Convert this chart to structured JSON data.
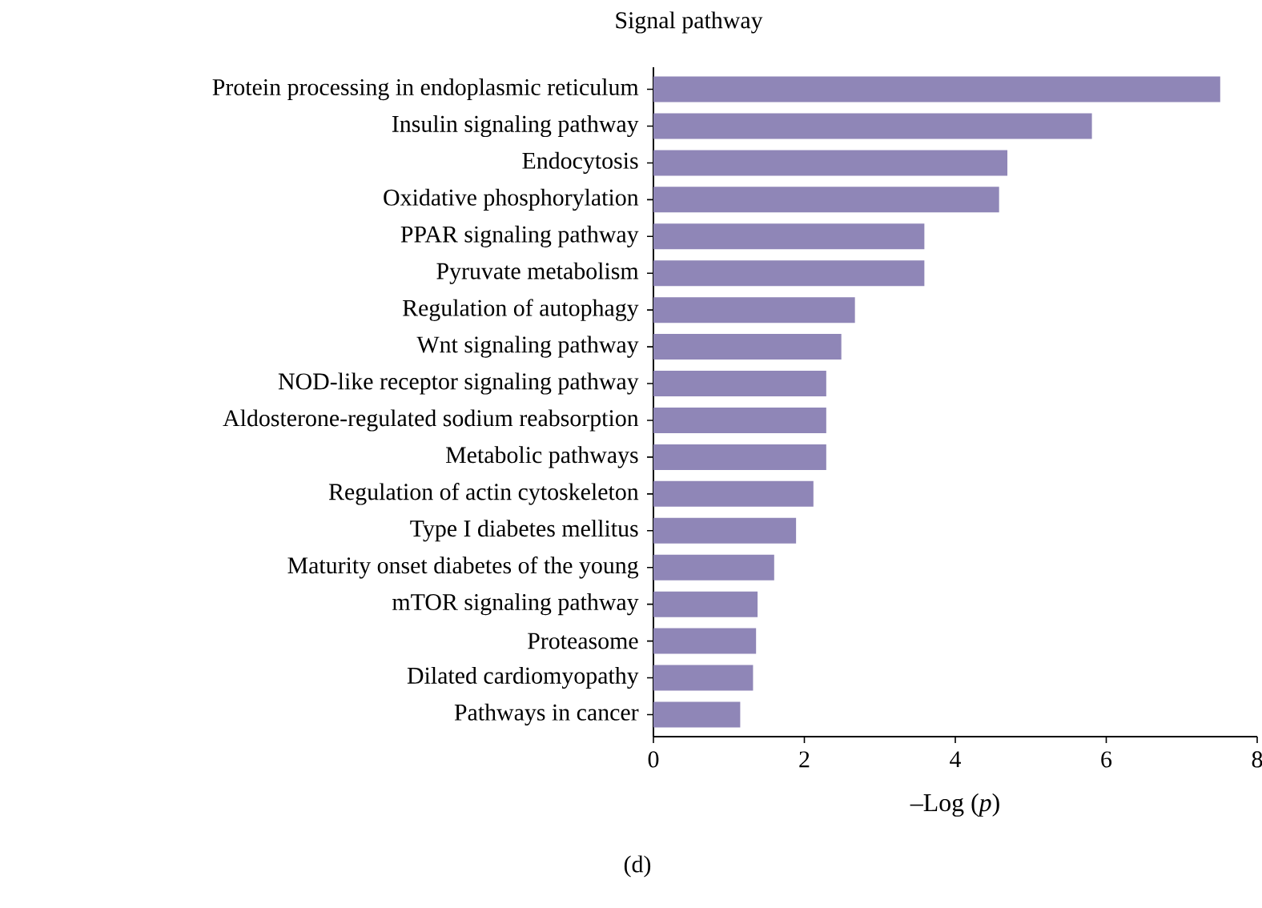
{
  "chart_data": {
    "type": "bar",
    "orientation": "horizontal",
    "title": "Signal pathway",
    "xlabel": "–Log (*p*)",
    "annotations": [
      "(d)"
    ],
    "categories": [
      "Protein processing in endoplasmic reticulum",
      "Insulin signaling pathway",
      "Endocytosis",
      "Oxidative phosphorylation",
      "PPAR signaling pathway",
      "Pyruvate metabolism",
      "Regulation of autophagy",
      "Wnt signaling pathway",
      "NOD-like receptor signaling pathway",
      "Aldosterone-regulated sodium reabsorption",
      "Metabolic pathways",
      "Regulation of actin cytoskeleton",
      "Type I diabetes mellitus",
      "Maturity onset diabetes of the young",
      "mTOR signaling pathway",
      "Proteasome",
      "Dilated cardiomyopathy",
      "Pathways in cancer"
    ],
    "values": [
      7.51,
      5.81,
      4.69,
      4.58,
      3.59,
      3.59,
      2.67,
      2.49,
      2.29,
      2.29,
      2.29,
      2.12,
      1.89,
      1.6,
      1.38,
      1.36,
      1.32,
      1.15
    ],
    "color": "#8f86b7",
    "xlim": [
      0,
      8
    ],
    "xticks": [
      0,
      2,
      4,
      6,
      8
    ]
  }
}
